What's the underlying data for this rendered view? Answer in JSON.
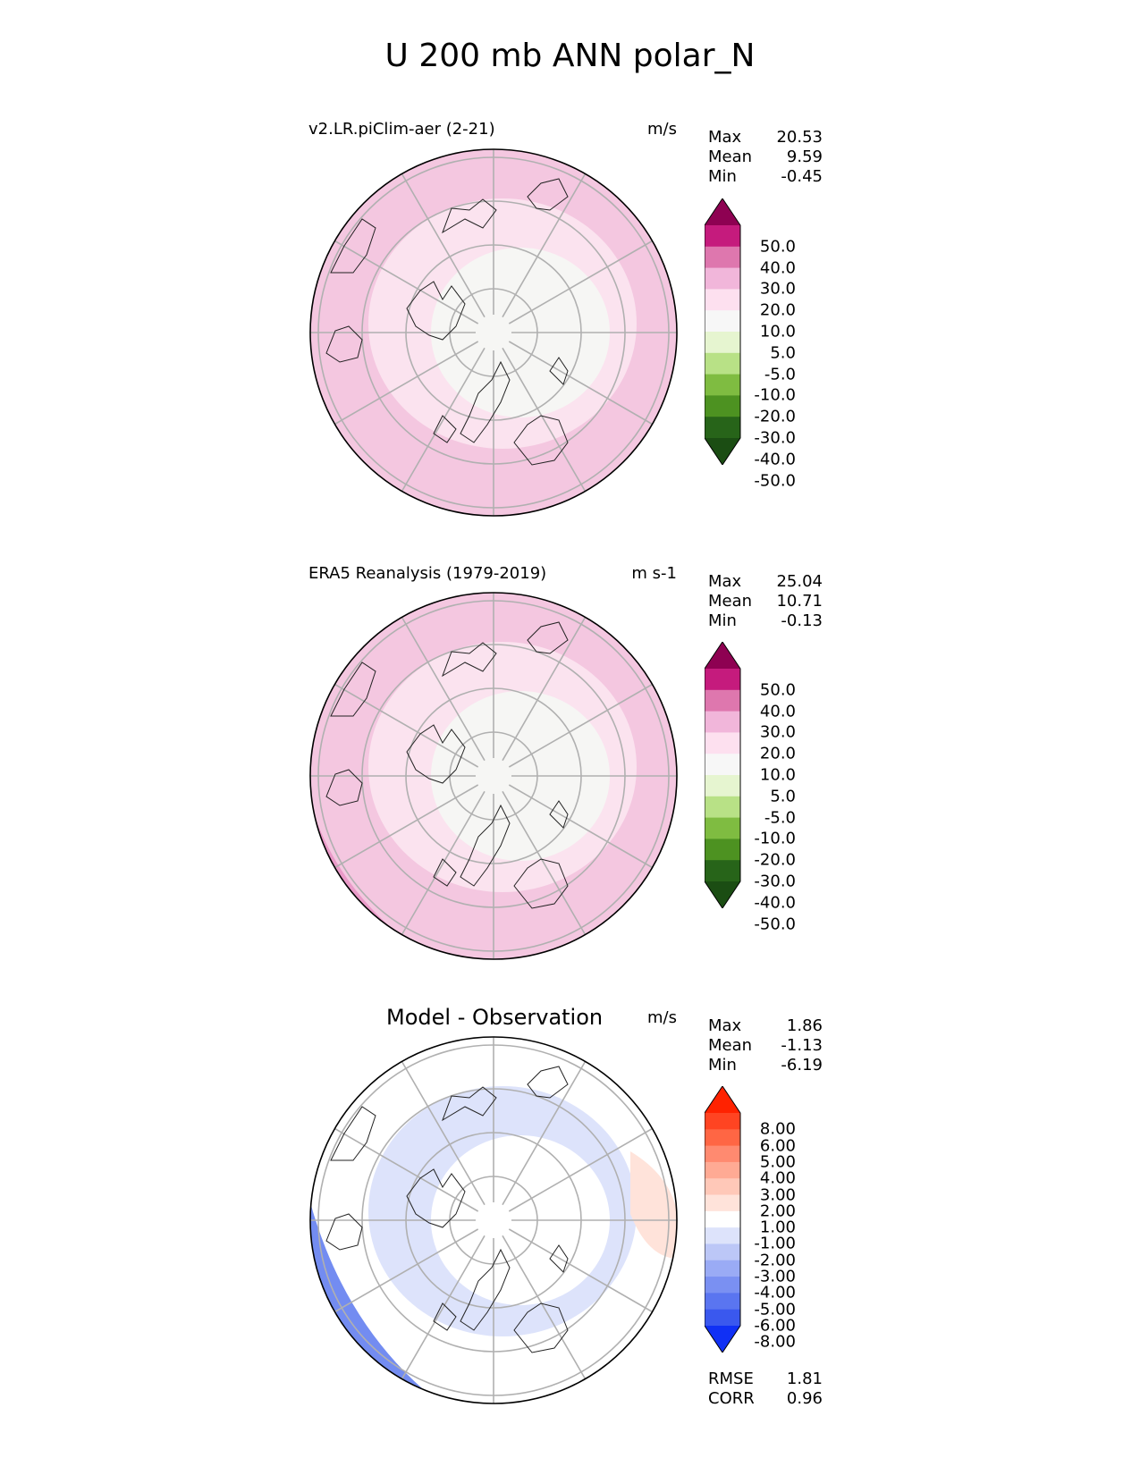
{
  "figure": {
    "title": "U 200 mb ANN polar_N"
  },
  "panels": [
    {
      "title": "v2.LR.piClim-aer (2-21)",
      "units": "m/s",
      "stats": [
        {
          "label": "Max",
          "value": "20.53"
        },
        {
          "label": "Mean",
          "value": "9.59"
        },
        {
          "label": "Min",
          "value": "-0.45"
        }
      ],
      "colorbar": {
        "labels": [
          "50.0",
          "40.0",
          "30.0",
          "20.0",
          "10.0",
          "5.0",
          "-5.0",
          "-10.0",
          "-20.0",
          "-30.0",
          "-40.0",
          "-50.0"
        ],
        "colors": [
          "#8e0152",
          "#c51b7d",
          "#de77ae",
          "#f1b6da",
          "#fde0ef",
          "#f7f7f7",
          "#e6f5d0",
          "#b8e186",
          "#7fbc41",
          "#4d9221",
          "#276419",
          "#1b4d13"
        ]
      },
      "fill": {
        "outer": "#f4c7e0",
        "mid": "#fbe3ef",
        "inner": "#f6f6f4",
        "accent": "#e99ac8"
      }
    },
    {
      "title": "ERA5 Reanalysis (1979-2019)",
      "units": "m s-1",
      "stats": [
        {
          "label": "Max",
          "value": "25.04"
        },
        {
          "label": "Mean",
          "value": "10.71"
        },
        {
          "label": "Min",
          "value": "-0.13"
        }
      ],
      "colorbar": {
        "labels": [
          "50.0",
          "40.0",
          "30.0",
          "20.0",
          "10.0",
          "5.0",
          "-5.0",
          "-10.0",
          "-20.0",
          "-30.0",
          "-40.0",
          "-50.0"
        ],
        "colors": [
          "#8e0152",
          "#c51b7d",
          "#de77ae",
          "#f1b6da",
          "#fde0ef",
          "#f7f7f7",
          "#e6f5d0",
          "#b8e186",
          "#7fbc41",
          "#4d9221",
          "#276419",
          "#1b4d13"
        ]
      },
      "fill": {
        "outer": "#f4c7e0",
        "mid": "#fbe3ef",
        "inner": "#f6f6f4",
        "accent": "#e99ac8"
      }
    },
    {
      "title": "Model - Observation",
      "units": "m/s",
      "stats": [
        {
          "label": "Max",
          "value": "1.86"
        },
        {
          "label": "Mean",
          "value": "-1.13"
        },
        {
          "label": "Min",
          "value": "-6.19"
        }
      ],
      "colorbar": {
        "labels": [
          "8.00",
          "6.00",
          "5.00",
          "4.00",
          "3.00",
          "2.00",
          "1.00",
          "-1.00",
          "-2.00",
          "-3.00",
          "-4.00",
          "-5.00",
          "-6.00",
          "-8.00"
        ],
        "colors": [
          "#ff2200",
          "#ff4422",
          "#ff6644",
          "#ff8a70",
          "#ffaa94",
          "#ffc8b8",
          "#ffe3da",
          "#ffffff",
          "#dde3fb",
          "#bcc7f7",
          "#9aabf5",
          "#7a90f2",
          "#5a75f0",
          "#3a58ee",
          "#1030f5"
        ]
      },
      "fill": {
        "outer": "#ffffff",
        "mid": "#dde3fb",
        "inner": "#ffffff",
        "accent": "#5a78ef"
      },
      "metrics": [
        {
          "label": "RMSE",
          "value": "1.81"
        },
        {
          "label": "CORR",
          "value": "0.96"
        }
      ]
    }
  ]
}
